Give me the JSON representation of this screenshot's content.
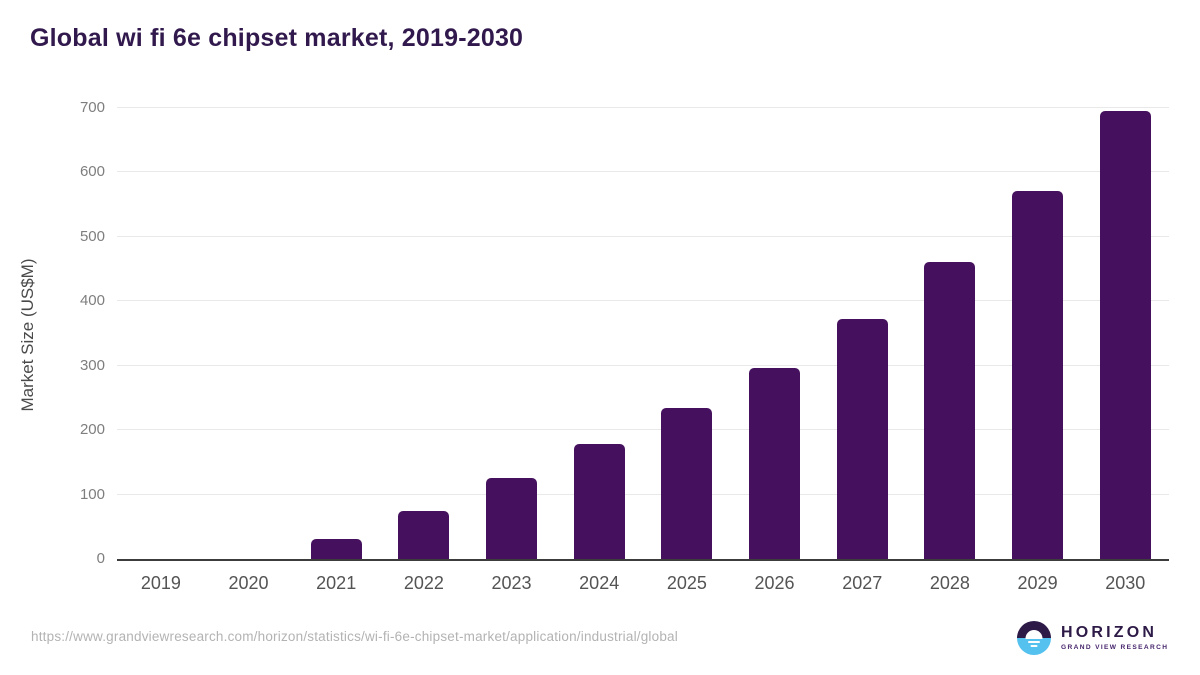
{
  "page": {
    "title": "Global wi fi 6e chipset market, 2019-2030",
    "source_url": "https://www.grandviewresearch.com/horizon/statistics/wi-fi-6e-chipset-market/application/industrial/global"
  },
  "branding": {
    "name": "HORIZON",
    "subtitle": "GRAND VIEW RESEARCH",
    "logo_icon": "sun-over-horizon-icon"
  },
  "colors": {
    "bar": "#45115e",
    "title": "#31194d",
    "axis_label": "#4a4a4a",
    "tick_label": "#7e7e7e",
    "x_label": "#545454",
    "gridline": "#e9e9e9",
    "axis_line": "#3c3c3c",
    "url": "#b3b3b3",
    "logo_purple": "#2e1a47",
    "logo_blue": "#55c1ee",
    "logo_sub": "#46246b"
  },
  "chart_data": {
    "type": "bar",
    "title": "Global wi fi 6e chipset market, 2019-2030",
    "categories": [
      "2019",
      "2020",
      "2021",
      "2022",
      "2023",
      "2024",
      "2025",
      "2026",
      "2027",
      "2028",
      "2029",
      "2030"
    ],
    "values": [
      0,
      0,
      31,
      74,
      125,
      178,
      234,
      297,
      373,
      461,
      571,
      696
    ],
    "xlabel": "",
    "ylabel": "Market Size (US$M)",
    "ylim": [
      0,
      700
    ],
    "y_ticks": [
      0,
      100,
      200,
      300,
      400,
      500,
      600,
      700
    ],
    "grid": "horizontal",
    "legend": "none",
    "bar_color": "#45115e"
  }
}
